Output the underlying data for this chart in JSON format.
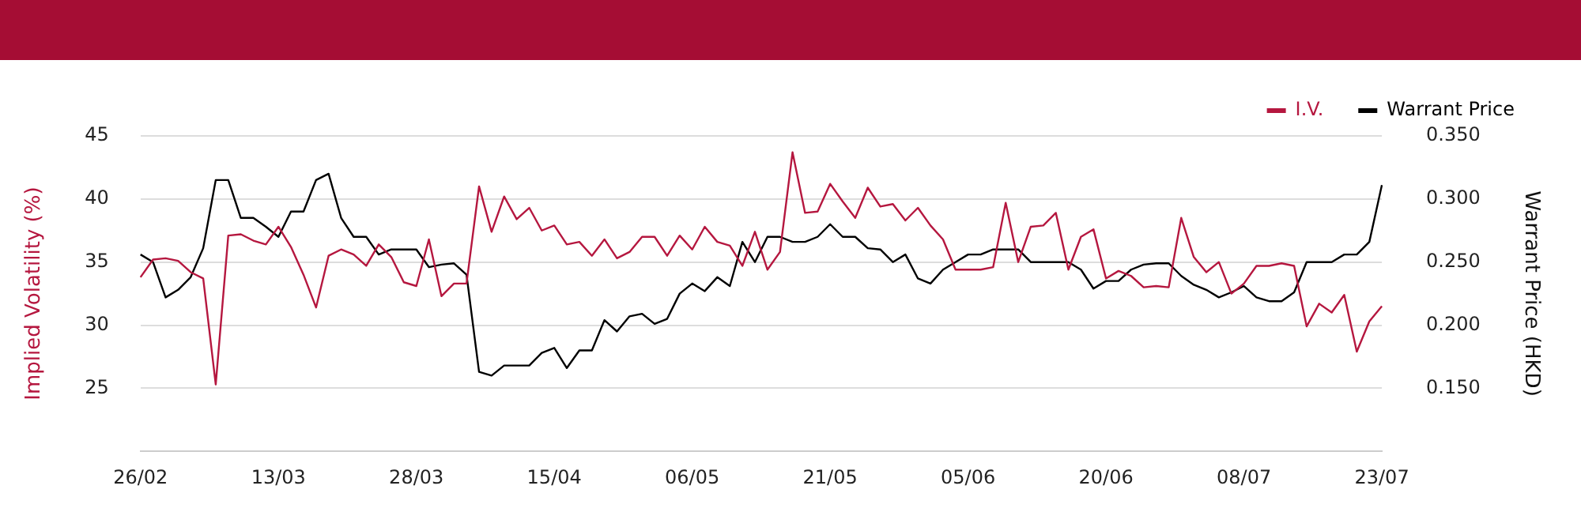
{
  "chart_data": {
    "type": "line",
    "xlabel": null,
    "ylabel": "Implied Volatility (%)",
    "y2label": "Warrant Price (HKD)",
    "categories": [
      "26/02",
      null,
      null,
      null,
      null,
      null,
      null,
      null,
      null,
      null,
      null,
      "13/03",
      null,
      null,
      null,
      null,
      null,
      null,
      null,
      null,
      null,
      null,
      "28/03",
      null,
      null,
      null,
      null,
      null,
      null,
      null,
      null,
      null,
      null,
      "15/04",
      null,
      null,
      null,
      null,
      null,
      null,
      null,
      null,
      null,
      null,
      "06/05",
      null,
      null,
      null,
      null,
      null,
      null,
      null,
      null,
      null,
      null,
      "21/05",
      null,
      null,
      null,
      null,
      null,
      null,
      null,
      null,
      null,
      null,
      "05/06",
      null,
      null,
      null,
      null,
      null,
      null,
      null,
      null,
      null,
      null,
      "20/06",
      null,
      null,
      null,
      null,
      null,
      null,
      null,
      null,
      null,
      null,
      "08/07",
      null,
      null,
      null,
      null,
      null,
      null,
      null,
      null,
      null,
      null,
      "23/07"
    ],
    "series": [
      {
        "name": "I.V.",
        "color": "#b5173f",
        "values": [
          33.8,
          35.2,
          35.3,
          35.1,
          34.2,
          33.7,
          25.3,
          37.1,
          37.2,
          36.7,
          36.4,
          37.8,
          36.2,
          34.0,
          31.4,
          35.5,
          36.0,
          35.6,
          34.7,
          36.4,
          35.4,
          33.4,
          33.1,
          36.8,
          32.3,
          33.3,
          33.3,
          41.0,
          37.4,
          40.2,
          38.4,
          39.3,
          37.5,
          37.9,
          36.4,
          36.6,
          35.5,
          36.8,
          35.3,
          35.8,
          37.0,
          37.0,
          35.5,
          37.1,
          36.0,
          37.8,
          36.6,
          36.3,
          34.7,
          37.4,
          34.4,
          35.8,
          43.7,
          38.9,
          39.0,
          41.2,
          39.8,
          38.5,
          40.9,
          39.4,
          39.6,
          38.3,
          39.3,
          37.9,
          36.8,
          34.4,
          34.4,
          34.4,
          34.6,
          39.7,
          35.0,
          37.8,
          37.9,
          38.9,
          34.4,
          37.0,
          37.6,
          33.7,
          34.3,
          33.9,
          33.0,
          33.1,
          33.0,
          38.5,
          35.4,
          34.2,
          35.0,
          32.5,
          33.3,
          34.7,
          34.7,
          34.9,
          34.7,
          29.9,
          31.7,
          31.0,
          32.4,
          27.9,
          30.3,
          31.5
        ]
      },
      {
        "name": "Warrant Price",
        "color": "#000000",
        "axis": "y2",
        "values": [
          0.256,
          0.25,
          0.222,
          0.228,
          0.238,
          0.261,
          0.315,
          0.315,
          0.285,
          0.285,
          0.278,
          0.27,
          0.29,
          0.29,
          0.315,
          0.32,
          0.285,
          0.27,
          0.27,
          0.256,
          0.26,
          0.26,
          0.26,
          0.246,
          0.248,
          0.249,
          0.24,
          0.163,
          0.16,
          0.168,
          0.168,
          0.168,
          0.178,
          0.182,
          0.166,
          0.18,
          0.18,
          0.204,
          0.195,
          0.207,
          0.209,
          0.201,
          0.205,
          0.225,
          0.233,
          0.227,
          0.238,
          0.231,
          0.266,
          0.25,
          0.27,
          0.27,
          0.266,
          0.266,
          0.27,
          0.28,
          0.27,
          0.27,
          0.261,
          0.26,
          0.25,
          0.256,
          0.237,
          0.233,
          0.244,
          0.25,
          0.256,
          0.256,
          0.26,
          0.26,
          0.26,
          0.25,
          0.25,
          0.25,
          0.25,
          0.244,
          0.229,
          0.235,
          0.235,
          0.244,
          0.248,
          0.249,
          0.249,
          0.239,
          0.232,
          0.228,
          0.222,
          0.226,
          0.231,
          0.222,
          0.219,
          0.219,
          0.226,
          0.25,
          0.25,
          0.25,
          0.256,
          0.256,
          0.266,
          0.311
        ]
      }
    ],
    "ylim": [
      20,
      45
    ],
    "yticks": [
      25,
      30,
      35,
      40,
      45
    ],
    "y2lim": [
      0.1,
      0.35
    ],
    "y2ticks": [
      {
        "value": 0.15,
        "label": "0.150"
      },
      {
        "value": 0.2,
        "label": "0.200"
      },
      {
        "value": 0.25,
        "label": "0.250"
      },
      {
        "value": 0.3,
        "label": "0.300"
      },
      {
        "value": 0.35,
        "label": "0.350"
      }
    ],
    "grid": "y",
    "legend": "top right",
    "marker": "none",
    "line_style": "solid"
  }
}
